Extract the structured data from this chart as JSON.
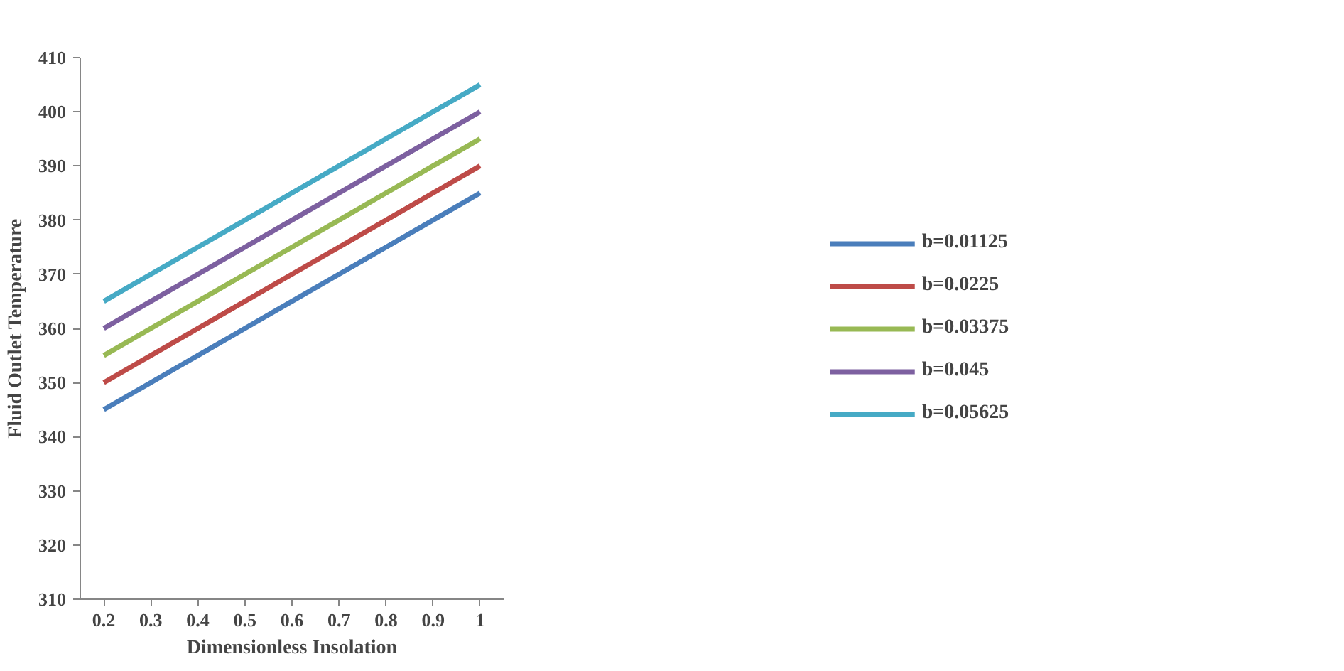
{
  "chart_data": {
    "type": "line",
    "xlabel": "Dimensionless Insolation",
    "ylabel": "Fluid Outlet Temperature",
    "categories": [
      "0.2",
      "0.3",
      "0.4",
      "0.5",
      "0.6",
      "0.7",
      "0.8",
      "0.9",
      "1"
    ],
    "series": [
      {
        "name": "b=0.01125",
        "color": "#4a7ebb",
        "values": [
          345,
          350,
          355,
          360,
          365,
          370,
          375,
          380,
          385
        ]
      },
      {
        "name": "b=0.0225",
        "color": "#be4b48",
        "values": [
          350,
          355,
          360,
          365,
          370,
          375,
          380,
          385,
          390
        ]
      },
      {
        "name": "b=0.03375",
        "color": "#98b954",
        "values": [
          355,
          360,
          365,
          370,
          375,
          380,
          385,
          390,
          395
        ]
      },
      {
        "name": "b=0.045",
        "color": "#7d60a0",
        "values": [
          360,
          365,
          370,
          375,
          380,
          385,
          390,
          395,
          400
        ]
      },
      {
        "name": "b=0.05625",
        "color": "#46aac5",
        "values": [
          365,
          370,
          375,
          380,
          385,
          390,
          395,
          400,
          405
        ]
      }
    ],
    "ylim": [
      310,
      410
    ],
    "yticks": [
      310,
      320,
      330,
      340,
      350,
      360,
      370,
      380,
      390,
      400,
      410
    ],
    "grid": false,
    "legend": "right",
    "marker": "none",
    "line_style": "solid"
  }
}
